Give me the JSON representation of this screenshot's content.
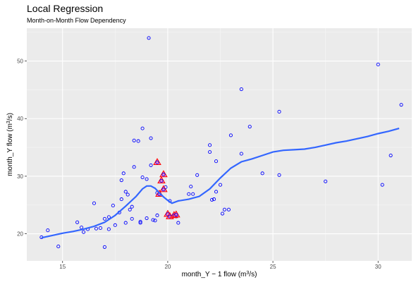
{
  "chart_data": {
    "type": "scatter",
    "title": "Local Regression",
    "subtitle": "Month-on-Month Flow Dependency",
    "xlabel": "month_Y − 1 flow (m³/s)",
    "ylabel": "month_Y flow (m³/s)",
    "xlim": [
      13.3,
      31.6
    ],
    "ylim": [
      15.3,
      55.7
    ],
    "x_ticks": [
      15,
      20,
      25,
      30
    ],
    "y_ticks": [
      20,
      30,
      40,
      50
    ],
    "grid": true,
    "colors": {
      "panel": "#ebebeb",
      "grid_major": "#ffffff",
      "point": "#0000ff",
      "highlight_fill": "#ff69b4",
      "highlight_stroke": "#ff0000",
      "curve": "#3366ff"
    },
    "points": [
      [
        14.0,
        19.4
      ],
      [
        14.3,
        20.6
      ],
      [
        14.8,
        17.8
      ],
      [
        15.7,
        22.0
      ],
      [
        15.9,
        21.1
      ],
      [
        16.0,
        20.3
      ],
      [
        16.2,
        20.8
      ],
      [
        16.5,
        25.3
      ],
      [
        16.6,
        20.9
      ],
      [
        16.8,
        21.0
      ],
      [
        17.0,
        17.7
      ],
      [
        17.0,
        22.6
      ],
      [
        17.2,
        22.9
      ],
      [
        17.2,
        20.8
      ],
      [
        17.4,
        24.9
      ],
      [
        17.5,
        21.5
      ],
      [
        17.7,
        23.7
      ],
      [
        17.8,
        26.0
      ],
      [
        17.8,
        29.3
      ],
      [
        17.9,
        30.5
      ],
      [
        18.0,
        21.9
      ],
      [
        18.0,
        27.3
      ],
      [
        18.1,
        26.8
      ],
      [
        18.2,
        24.2
      ],
      [
        18.3,
        22.6
      ],
      [
        18.3,
        24.7
      ],
      [
        18.4,
        36.2
      ],
      [
        18.4,
        31.6
      ],
      [
        18.6,
        36.1
      ],
      [
        18.7,
        21.9
      ],
      [
        18.7,
        22.1
      ],
      [
        18.8,
        38.3
      ],
      [
        18.8,
        29.8
      ],
      [
        19.0,
        29.5
      ],
      [
        19.0,
        22.7
      ],
      [
        19.1,
        54.0
      ],
      [
        19.2,
        36.6
      ],
      [
        19.2,
        31.9
      ],
      [
        19.3,
        22.4
      ],
      [
        19.4,
        22.3
      ],
      [
        19.5,
        23.2
      ],
      [
        19.5,
        27.1
      ],
      [
        19.6,
        26.8
      ],
      [
        19.9,
        28.1
      ],
      [
        20.1,
        25.7
      ],
      [
        20.4,
        23.0
      ],
      [
        20.5,
        21.9
      ],
      [
        21.0,
        26.9
      ],
      [
        21.1,
        28.2
      ],
      [
        21.2,
        26.9
      ],
      [
        21.4,
        30.2
      ],
      [
        22.0,
        35.4
      ],
      [
        22.0,
        34.2
      ],
      [
        22.1,
        25.9
      ],
      [
        22.2,
        26.0
      ],
      [
        22.3,
        27.3
      ],
      [
        22.3,
        32.6
      ],
      [
        22.5,
        28.5
      ],
      [
        22.6,
        23.5
      ],
      [
        22.7,
        24.2
      ],
      [
        22.9,
        24.2
      ],
      [
        23.0,
        37.1
      ],
      [
        23.5,
        33.9
      ],
      [
        23.5,
        45.1
      ],
      [
        23.9,
        38.6
      ],
      [
        24.5,
        30.5
      ],
      [
        25.3,
        30.2
      ],
      [
        25.3,
        41.2
      ],
      [
        27.5,
        29.1
      ],
      [
        30.0,
        49.4
      ],
      [
        30.2,
        28.5
      ],
      [
        30.6,
        33.6
      ],
      [
        31.1,
        42.4
      ]
    ],
    "highlighted_points": [
      [
        19.5,
        32.4
      ],
      [
        19.8,
        30.3
      ],
      [
        19.7,
        29.2
      ],
      [
        19.8,
        27.7
      ],
      [
        19.6,
        26.9
      ],
      [
        20.0,
        23.4
      ],
      [
        20.1,
        23.0
      ],
      [
        20.3,
        23.2
      ],
      [
        20.4,
        23.3
      ]
    ],
    "smooth_line": [
      [
        14.0,
        19.3
      ],
      [
        14.5,
        19.7
      ],
      [
        15.0,
        20.1
      ],
      [
        15.5,
        20.4
      ],
      [
        16.0,
        20.8
      ],
      [
        16.5,
        21.3
      ],
      [
        17.0,
        22.0
      ],
      [
        17.5,
        23.2
      ],
      [
        18.0,
        24.8
      ],
      [
        18.5,
        26.5
      ],
      [
        18.8,
        27.8
      ],
      [
        19.0,
        28.3
      ],
      [
        19.2,
        28.3
      ],
      [
        19.4,
        27.9
      ],
      [
        19.6,
        27.1
      ],
      [
        19.8,
        26.4
      ],
      [
        20.0,
        25.8
      ],
      [
        20.2,
        25.3
      ],
      [
        20.5,
        25.7
      ],
      [
        21.0,
        26.0
      ],
      [
        21.5,
        26.5
      ],
      [
        22.0,
        27.8
      ],
      [
        22.5,
        29.7
      ],
      [
        23.0,
        31.4
      ],
      [
        23.5,
        32.5
      ],
      [
        24.0,
        33.0
      ],
      [
        24.5,
        33.6
      ],
      [
        25.0,
        34.2
      ],
      [
        25.5,
        34.5
      ],
      [
        26.0,
        34.6
      ],
      [
        26.5,
        34.7
      ],
      [
        27.0,
        35.0
      ],
      [
        27.5,
        35.4
      ],
      [
        28.0,
        35.8
      ],
      [
        28.5,
        36.1
      ],
      [
        29.0,
        36.5
      ],
      [
        29.5,
        36.9
      ],
      [
        30.0,
        37.4
      ],
      [
        30.5,
        37.8
      ],
      [
        31.0,
        38.3
      ]
    ]
  }
}
